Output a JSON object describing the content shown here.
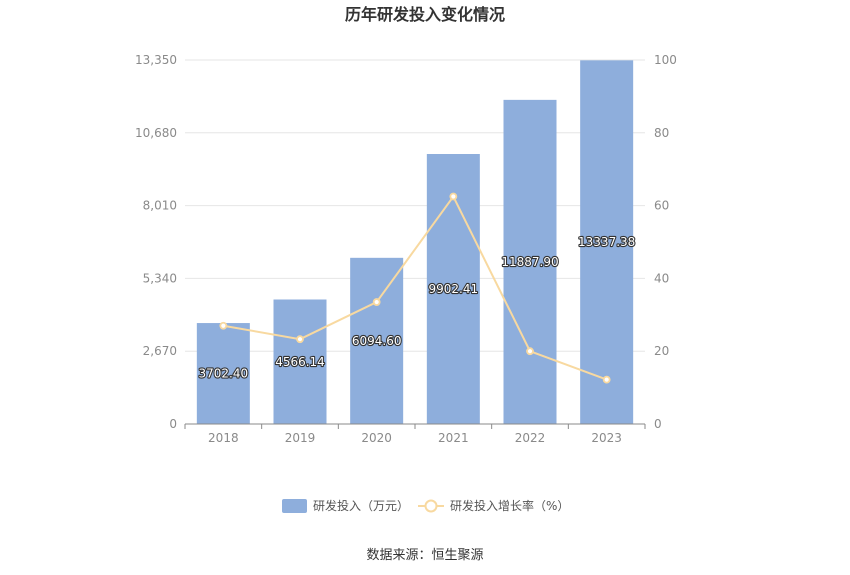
{
  "chart_data": {
    "type": "bar",
    "title": "历年研发投入变化情况",
    "categories": [
      "2018",
      "2019",
      "2020",
      "2021",
      "2022",
      "2023"
    ],
    "series": [
      {
        "name": "研发投入（万元）",
        "type": "bar",
        "axis": "left",
        "values": [
          3702.4,
          4566.14,
          6094.6,
          9902.41,
          11887.9,
          13337.38
        ],
        "value_labels": [
          "3702.40",
          "4566.14",
          "6094.60",
          "9902.41",
          "11887.90",
          "13337.38"
        ],
        "color": "#8eaedc"
      },
      {
        "name": "研发投入增长率（%）",
        "type": "line",
        "axis": "right",
        "values": [
          27,
          23.3,
          33.5,
          62.5,
          20,
          12.2
        ],
        "color": "#f8d9a0"
      }
    ],
    "y_left": {
      "ticks": [
        "0",
        "2,670",
        "5,340",
        "8,010",
        "10,680",
        "13,350"
      ],
      "ylim": [
        0,
        13350
      ]
    },
    "y_right": {
      "ticks": [
        "0",
        "20",
        "40",
        "60",
        "80",
        "100"
      ],
      "ylim": [
        0,
        100
      ]
    },
    "legend_position": "bottom",
    "grid": true
  },
  "footer": {
    "source": "数据来源：恒生聚源"
  }
}
